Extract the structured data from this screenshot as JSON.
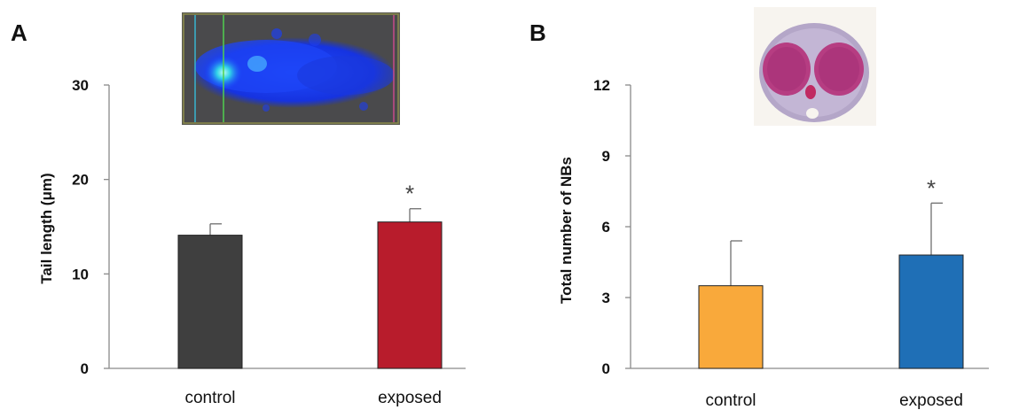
{
  "chart_data": [
    {
      "type": "bar",
      "panel": "A",
      "categories": [
        "control",
        "exposed"
      ],
      "values": [
        14.1,
        15.5
      ],
      "errors": [
        1.2,
        1.4
      ],
      "colors": [
        "#3f3f3f",
        "#b81c2c"
      ],
      "annotations": [
        "",
        "*"
      ],
      "title": "",
      "xlabel": "",
      "ylabel": "Tail length (μm)",
      "ylim": [
        0,
        30
      ],
      "yticks": [
        0,
        10,
        20,
        30
      ],
      "grid": false,
      "inset_image": "comet-assay-micrograph"
    },
    {
      "type": "bar",
      "panel": "B",
      "categories": [
        "control",
        "exposed"
      ],
      "values": [
        3.5,
        4.8
      ],
      "errors": [
        1.9,
        2.2
      ],
      "colors": [
        "#f9a93b",
        "#1f6fb6"
      ],
      "annotations": [
        "",
        "*"
      ],
      "title": "",
      "xlabel": "",
      "ylabel": "Total number of NBs",
      "ylim": [
        0,
        12
      ],
      "yticks": [
        0,
        3,
        6,
        9,
        12
      ],
      "grid": false,
      "inset_image": "binucleated-cell-micrograph"
    }
  ]
}
